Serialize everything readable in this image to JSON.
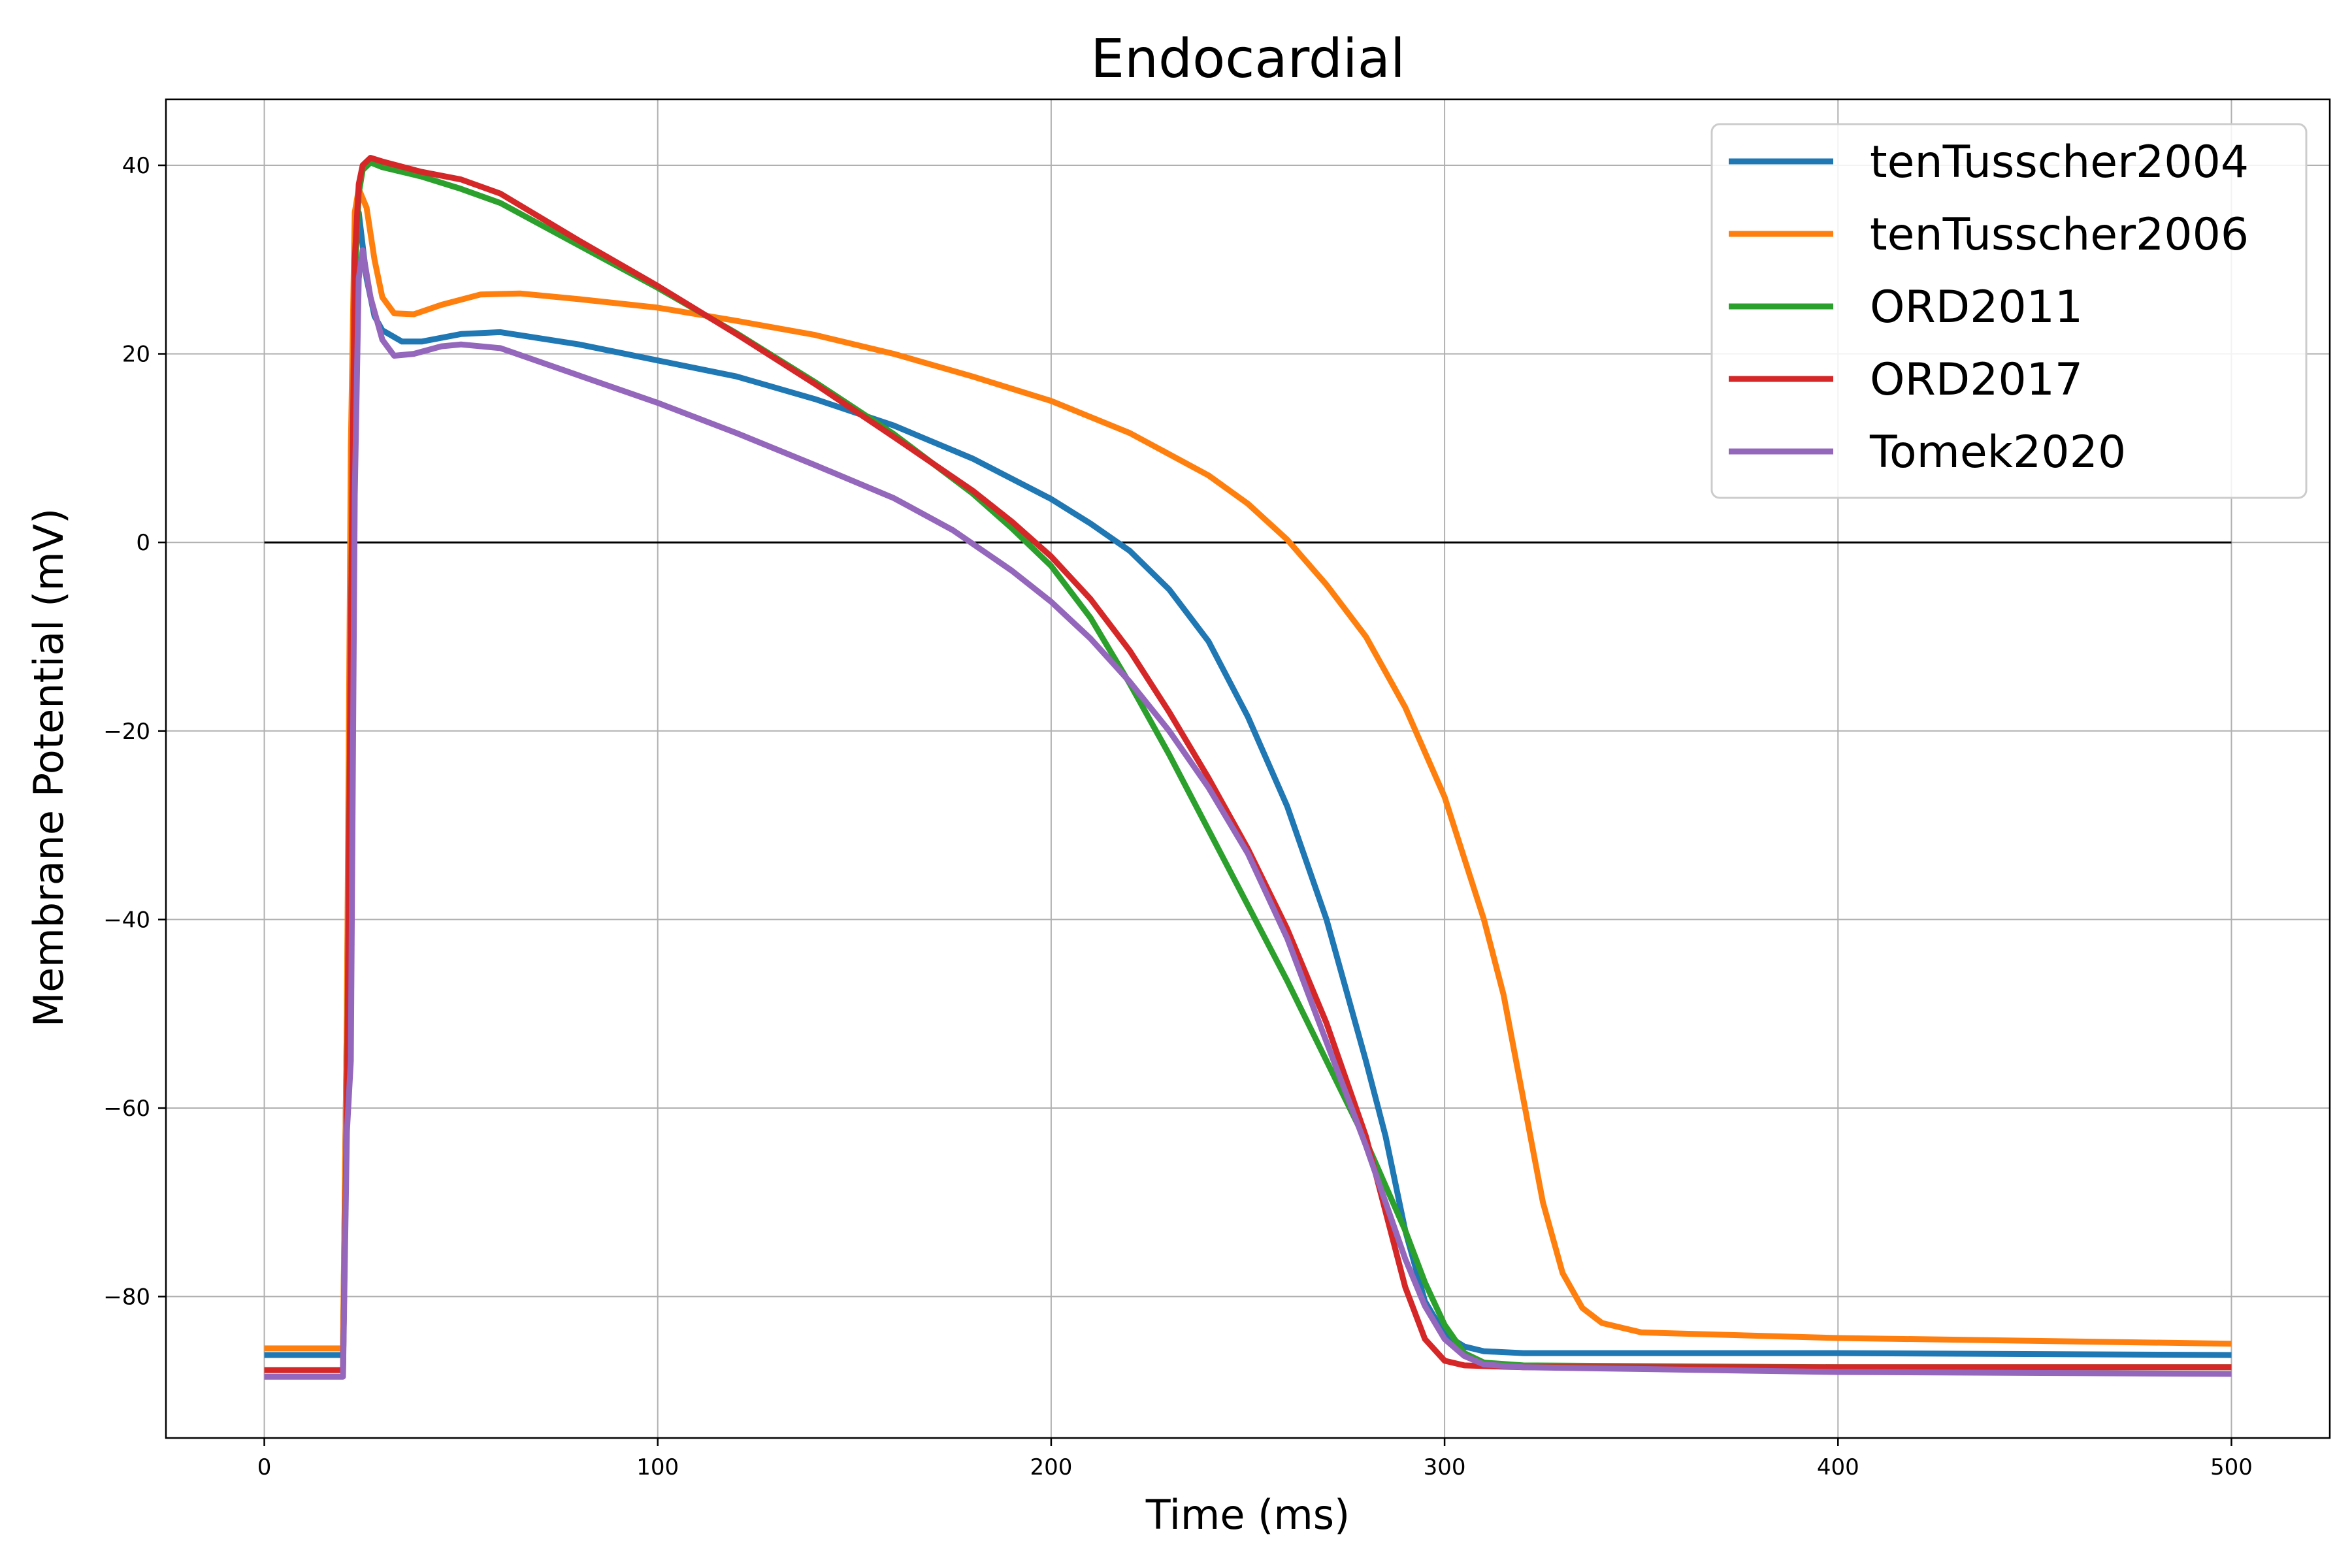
{
  "chart_data": {
    "type": "line",
    "title": "Endocardial",
    "xlabel": "Time (ms)",
    "ylabel": "Membrane Potential (mV)",
    "xlim": [
      -25,
      525
    ],
    "ylim": [
      -95,
      47
    ],
    "xticks": [
      0,
      100,
      200,
      300,
      400,
      500
    ],
    "xtick_labels": [
      "0",
      "100",
      "200",
      "300",
      "400",
      "500"
    ],
    "yticks": [
      -80,
      -60,
      -40,
      -20,
      0,
      20,
      40
    ],
    "ytick_labels": [
      "−80",
      "−60",
      "−40",
      "−20",
      "0",
      "20",
      "40"
    ],
    "grid": true,
    "legend_position": "top-right",
    "reference_line": {
      "y": 0,
      "x_range": [
        0,
        500
      ],
      "color": "#000000"
    },
    "series": [
      {
        "name": "tenTusscher2004",
        "color": "#1f77b4",
        "points": [
          [
            0,
            -86.2
          ],
          [
            20,
            -86.2
          ],
          [
            21,
            -50
          ],
          [
            22,
            0
          ],
          [
            23,
            30
          ],
          [
            24,
            35
          ],
          [
            26,
            28
          ],
          [
            28,
            24
          ],
          [
            30,
            22.5
          ],
          [
            35,
            21.3
          ],
          [
            40,
            21.3
          ],
          [
            50,
            22.1
          ],
          [
            60,
            22.3
          ],
          [
            80,
            21
          ],
          [
            100,
            19.3
          ],
          [
            120,
            17.6
          ],
          [
            140,
            15.2
          ],
          [
            160,
            12.4
          ],
          [
            180,
            8.9
          ],
          [
            200,
            4.6
          ],
          [
            210,
            2
          ],
          [
            220,
            -0.9
          ],
          [
            230,
            -5
          ],
          [
            240,
            -10.5
          ],
          [
            250,
            -18.5
          ],
          [
            260,
            -28
          ],
          [
            270,
            -40
          ],
          [
            280,
            -55
          ],
          [
            285,
            -63
          ],
          [
            290,
            -73
          ],
          [
            295,
            -80.5
          ],
          [
            300,
            -84
          ],
          [
            305,
            -85.3
          ],
          [
            310,
            -85.8
          ],
          [
            320,
            -86
          ],
          [
            400,
            -86
          ],
          [
            500,
            -86.2
          ]
        ]
      },
      {
        "name": "tenTusscher2006",
        "color": "#ff7f0e",
        "points": [
          [
            0,
            -85.5
          ],
          [
            20,
            -85.5
          ],
          [
            21,
            -50
          ],
          [
            22,
            10
          ],
          [
            23,
            35
          ],
          [
            24,
            37.5
          ],
          [
            26,
            35.5
          ],
          [
            28,
            30
          ],
          [
            30,
            26
          ],
          [
            33,
            24.3
          ],
          [
            38,
            24.2
          ],
          [
            45,
            25.2
          ],
          [
            55,
            26.3
          ],
          [
            65,
            26.4
          ],
          [
            80,
            25.8
          ],
          [
            100,
            24.9
          ],
          [
            120,
            23.5
          ],
          [
            140,
            22
          ],
          [
            160,
            20
          ],
          [
            180,
            17.6
          ],
          [
            200,
            15
          ],
          [
            220,
            11.6
          ],
          [
            240,
            7.1
          ],
          [
            250,
            4.1
          ],
          [
            260,
            0.3
          ],
          [
            270,
            -4.5
          ],
          [
            280,
            -10
          ],
          [
            290,
            -17.5
          ],
          [
            300,
            -27
          ],
          [
            310,
            -40
          ],
          [
            315,
            -48
          ],
          [
            320,
            -59
          ],
          [
            325,
            -70
          ],
          [
            330,
            -77.5
          ],
          [
            335,
            -81.2
          ],
          [
            340,
            -82.8
          ],
          [
            350,
            -83.8
          ],
          [
            400,
            -84.4
          ],
          [
            500,
            -85
          ]
        ]
      },
      {
        "name": "ORD2011",
        "color": "#2ca02c",
        "points": [
          [
            0,
            -87.8
          ],
          [
            20,
            -87.8
          ],
          [
            21,
            -60
          ],
          [
            22,
            -10
          ],
          [
            23,
            28
          ],
          [
            24,
            37
          ],
          [
            25,
            39.5
          ],
          [
            27,
            40.3
          ],
          [
            30,
            39.8
          ],
          [
            40,
            38.8
          ],
          [
            50,
            37.5
          ],
          [
            60,
            36
          ],
          [
            80,
            31.5
          ],
          [
            100,
            27
          ],
          [
            120,
            22.2
          ],
          [
            140,
            17
          ],
          [
            160,
            11.5
          ],
          [
            180,
            5.2
          ],
          [
            190,
            1.5
          ],
          [
            200,
            -2.5
          ],
          [
            210,
            -8
          ],
          [
            220,
            -15
          ],
          [
            230,
            -22.5
          ],
          [
            240,
            -30.5
          ],
          [
            250,
            -38.5
          ],
          [
            260,
            -46.5
          ],
          [
            270,
            -55
          ],
          [
            280,
            -63.5
          ],
          [
            290,
            -73
          ],
          [
            295,
            -78.5
          ],
          [
            300,
            -83
          ],
          [
            305,
            -86
          ],
          [
            310,
            -87
          ],
          [
            320,
            -87.3
          ],
          [
            400,
            -87.5
          ],
          [
            500,
            -87.5
          ]
        ]
      },
      {
        "name": "ORD2017",
        "color": "#d62728",
        "points": [
          [
            0,
            -87.8
          ],
          [
            20,
            -87.8
          ],
          [
            21,
            -60
          ],
          [
            22,
            -10
          ],
          [
            23,
            30
          ],
          [
            24,
            38
          ],
          [
            25,
            40
          ],
          [
            27,
            40.8
          ],
          [
            30,
            40.4
          ],
          [
            40,
            39.3
          ],
          [
            50,
            38.5
          ],
          [
            60,
            37
          ],
          [
            80,
            32
          ],
          [
            100,
            27.2
          ],
          [
            120,
            22.1
          ],
          [
            140,
            16.8
          ],
          [
            160,
            11.2
          ],
          [
            180,
            5.5
          ],
          [
            190,
            2.2
          ],
          [
            200,
            -1.5
          ],
          [
            210,
            -6
          ],
          [
            220,
            -11.5
          ],
          [
            230,
            -18
          ],
          [
            240,
            -25
          ],
          [
            250,
            -32.5
          ],
          [
            260,
            -41
          ],
          [
            270,
            -51
          ],
          [
            280,
            -63
          ],
          [
            285,
            -71
          ],
          [
            290,
            -79
          ],
          [
            295,
            -84.5
          ],
          [
            300,
            -86.8
          ],
          [
            305,
            -87.3
          ],
          [
            320,
            -87.5
          ],
          [
            500,
            -87.5
          ]
        ]
      },
      {
        "name": "Tomek2020",
        "color": "#9467bd",
        "points": [
          [
            0,
            -88.5
          ],
          [
            20,
            -88.5
          ],
          [
            21,
            -62.5
          ],
          [
            22,
            -55
          ],
          [
            23,
            5
          ],
          [
            24,
            28
          ],
          [
            25,
            31
          ],
          [
            27,
            26
          ],
          [
            30,
            21.5
          ],
          [
            33,
            19.8
          ],
          [
            38,
            20
          ],
          [
            45,
            20.8
          ],
          [
            50,
            21
          ],
          [
            60,
            20.6
          ],
          [
            80,
            17.7
          ],
          [
            100,
            14.8
          ],
          [
            120,
            11.6
          ],
          [
            140,
            8.2
          ],
          [
            160,
            4.7
          ],
          [
            175,
            1.3
          ],
          [
            190,
            -3
          ],
          [
            200,
            -6.3
          ],
          [
            210,
            -10.2
          ],
          [
            220,
            -14.8
          ],
          [
            230,
            -20
          ],
          [
            240,
            -26
          ],
          [
            250,
            -33
          ],
          [
            260,
            -42
          ],
          [
            270,
            -53
          ],
          [
            280,
            -64
          ],
          [
            290,
            -76
          ],
          [
            295,
            -81
          ],
          [
            300,
            -84.5
          ],
          [
            305,
            -86.3
          ],
          [
            310,
            -87.2
          ],
          [
            320,
            -87.5
          ],
          [
            400,
            -88
          ],
          [
            500,
            -88.2
          ]
        ]
      }
    ]
  }
}
